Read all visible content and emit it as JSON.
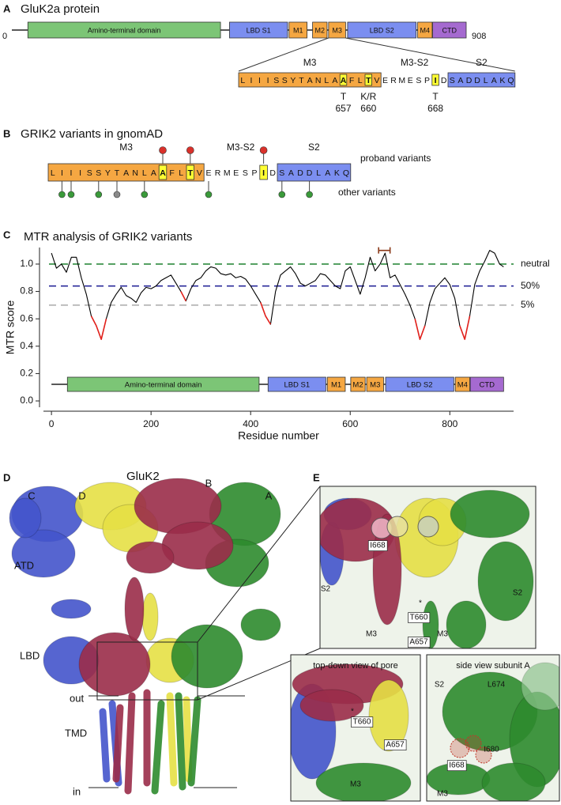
{
  "panel_a": {
    "label": "A",
    "title": "GluK2a protein"
  },
  "protein": {
    "start": 0,
    "length": 908,
    "domains": [
      {
        "name": "Amino-terminal domain",
        "start": 32,
        "end": 417,
        "color": "#7cc576"
      },
      {
        "name": "LBD S1",
        "start": 435,
        "end": 551,
        "color": "#7b8ef0"
      },
      {
        "name": "M1",
        "start": 554,
        "end": 590,
        "color": "#f5a742"
      },
      {
        "name": "M2",
        "start": 601,
        "end": 630,
        "color": "#f5a742"
      },
      {
        "name": "M3",
        "start": 633,
        "end": 667,
        "color": "#f5a742"
      },
      {
        "name": "LBD S2",
        "start": 671,
        "end": 808,
        "color": "#7b8ef0"
      },
      {
        "name": "M4",
        "start": 811,
        "end": 840,
        "color": "#f5a742"
      },
      {
        "name": "CTD",
        "start": 841,
        "end": 908,
        "color": "#a56ad0"
      }
    ]
  },
  "sequence": {
    "first_residue": 645,
    "highlight_color": "#ffff33",
    "regions": [
      {
        "name": "M3",
        "color": "#f5a742",
        "letters": [
          "L",
          "I",
          "I",
          "I",
          "S",
          "S",
          "Y",
          "T",
          "A",
          "N",
          "L",
          "A",
          "A",
          "F",
          "L",
          "T",
          "V"
        ]
      },
      {
        "name": "M3-S2",
        "letters": [
          "E",
          "R",
          "M",
          "E",
          "S",
          "P",
          "I",
          "D"
        ]
      },
      {
        "name": "S2",
        "color": "#7b8ef0",
        "letters": [
          "S",
          "A",
          "D",
          "D",
          "L",
          "A",
          "K",
          "Q"
        ]
      }
    ]
  },
  "variants": {
    "proband_color": "#d9312b",
    "proband": [
      {
        "residue": 657,
        "substitution": "T"
      },
      {
        "residue": 660,
        "substitution": "K/R"
      },
      {
        "residue": 668,
        "substitution": "T"
      }
    ],
    "other": [
      {
        "residue": 646,
        "color": "#3a9a3a"
      },
      {
        "residue": 647,
        "color": "#3a9a3a"
      },
      {
        "residue": 650,
        "color": "#3a9a3a"
      },
      {
        "residue": 652,
        "color": "#8a8a8a"
      },
      {
        "residue": 655,
        "color": "#3a9a3a"
      },
      {
        "residue": 662,
        "color": "#3a9a3a"
      },
      {
        "residue": 670,
        "color": "#3a9a3a"
      },
      {
        "residue": 673,
        "color": "#3a9a3a"
      }
    ]
  },
  "panel_b": {
    "label": "B",
    "title": "GRIK2 variants in gnomAD",
    "proband_label": "proband variants",
    "other_label": "other variants"
  },
  "chart_data": {
    "type": "line",
    "label": "C",
    "title": "MTR analysis of GRIK2 variants",
    "x_label": "Residue number",
    "y_label": "MTR score",
    "x": [
      0,
      10,
      20,
      30,
      40,
      50,
      60,
      70,
      80,
      90,
      100,
      110,
      120,
      130,
      140,
      150,
      160,
      170,
      180,
      190,
      200,
      210,
      220,
      230,
      240,
      250,
      260,
      270,
      280,
      290,
      300,
      310,
      320,
      330,
      340,
      350,
      360,
      370,
      380,
      390,
      400,
      410,
      420,
      430,
      440,
      450,
      460,
      470,
      480,
      490,
      500,
      510,
      520,
      530,
      540,
      550,
      560,
      570,
      580,
      590,
      600,
      610,
      620,
      630,
      640,
      650,
      660,
      670,
      680,
      690,
      700,
      710,
      720,
      730,
      740,
      750,
      760,
      770,
      780,
      790,
      800,
      810,
      820,
      830,
      840,
      850,
      860,
      870,
      880,
      890,
      900,
      908
    ],
    "series": [
      {
        "color": "#000000",
        "values": [
          1.08,
          0.97,
          1.0,
          0.94,
          1.05,
          1.05,
          0.9,
          0.78,
          0.62,
          0.55,
          0.45,
          0.6,
          0.72,
          0.78,
          0.83,
          0.77,
          0.75,
          0.72,
          0.79,
          0.83,
          0.82,
          0.84,
          0.88,
          0.9,
          0.92,
          0.86,
          0.8,
          0.73,
          0.82,
          0.88,
          0.9,
          0.95,
          0.98,
          0.97,
          0.93,
          0.92,
          0.93,
          0.9,
          0.91,
          0.89,
          0.84,
          0.78,
          0.72,
          0.62,
          0.56,
          0.8,
          0.92,
          0.95,
          0.98,
          0.93,
          0.86,
          0.84,
          0.86,
          0.88,
          0.93,
          0.92,
          0.88,
          0.84,
          0.82,
          0.95,
          0.98,
          0.88,
          0.78,
          0.9,
          1.05,
          0.95,
          1.0,
          1.08,
          0.9,
          0.92,
          0.85,
          0.78,
          0.7,
          0.6,
          0.45,
          0.55,
          0.72,
          0.82,
          0.86,
          0.9,
          0.85,
          0.75,
          0.55,
          0.45,
          0.62,
          0.85,
          0.95,
          1.02,
          1.1,
          1.08,
          1.0,
          0.98
        ]
      },
      {
        "color": "#e3211c",
        "values": [
          null,
          null,
          null,
          null,
          null,
          null,
          null,
          null,
          0.62,
          0.55,
          0.45,
          0.6,
          null,
          null,
          null,
          null,
          null,
          null,
          null,
          null,
          null,
          null,
          null,
          null,
          null,
          null,
          0.8,
          0.73,
          null,
          null,
          null,
          null,
          null,
          null,
          null,
          null,
          null,
          null,
          null,
          null,
          null,
          null,
          0.72,
          0.62,
          0.56,
          null,
          null,
          null,
          null,
          null,
          null,
          null,
          null,
          null,
          null,
          null,
          null,
          null,
          null,
          null,
          null,
          null,
          null,
          null,
          null,
          null,
          null,
          null,
          null,
          null,
          null,
          null,
          null,
          0.6,
          0.45,
          0.55,
          null,
          null,
          null,
          null,
          null,
          null,
          0.55,
          0.45,
          0.62,
          null,
          null,
          null,
          null,
          null,
          null,
          null
        ]
      }
    ],
    "xlim": [
      -24,
      936
    ],
    "ylim": [
      -0.075,
      1.15
    ],
    "xticks": [
      0,
      200,
      400,
      600,
      800
    ],
    "yticks": [
      {
        "value": 0,
        "label": "0.0"
      },
      0.2,
      0.4,
      0.6,
      0.8,
      {
        "value": 1,
        "label": "1.0"
      }
    ],
    "reference_lines": [
      {
        "value": 1,
        "label": "neutral",
        "color": "#2e8b3e"
      },
      {
        "value": 0.84,
        "label": "50%",
        "color": "#2b2b9b"
      },
      {
        "value": 0.7,
        "label": "5%",
        "color": "#aaaaaa"
      }
    ],
    "bracket": {
      "start": 657,
      "end": 680,
      "y": 1.1,
      "color": "#8b3a1a"
    }
  },
  "panel_d": {
    "label": "D",
    "title": "GluK2",
    "subunits": [
      {
        "name": "A",
        "color": "#2e8b2e"
      },
      {
        "name": "B",
        "color": "#9b2d4a"
      },
      {
        "name": "C",
        "color": "#4455cc"
      },
      {
        "name": "D",
        "color": "#e6e045"
      }
    ],
    "regions": [
      "ATD",
      "LBD",
      "TMD"
    ],
    "membrane": [
      "out",
      "in"
    ]
  },
  "panel_e": {
    "label": "E",
    "main": {
      "labels": [
        "S2",
        "I668",
        "S2",
        "M3",
        "*",
        "T660",
        "M3",
        "A657"
      ]
    },
    "pore": {
      "title": "top-down view of pore",
      "labels": [
        "*",
        "T660",
        "A657",
        "M3"
      ]
    },
    "side": {
      "title": "side view subunit A",
      "labels": [
        "S2",
        "L674",
        "I680",
        "I668",
        "M3"
      ]
    }
  }
}
